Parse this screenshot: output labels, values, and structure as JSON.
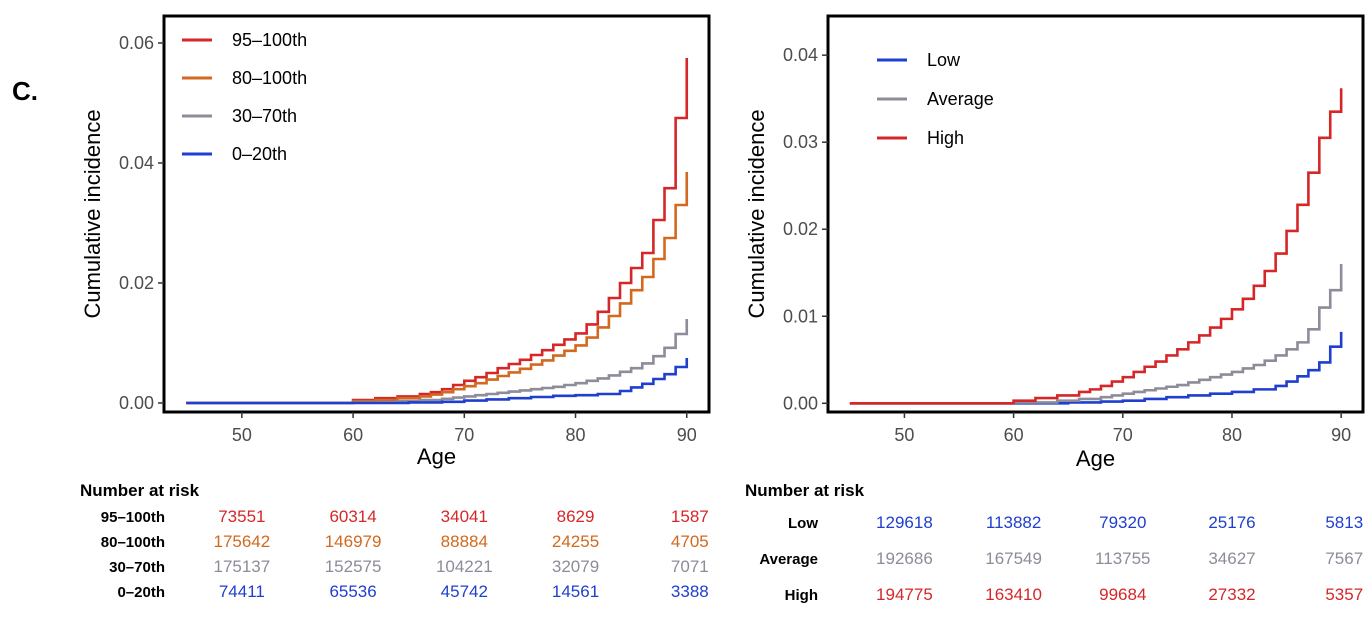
{
  "panel_label": "C.",
  "colors": {
    "red": "#d62728",
    "orange": "#d2691e",
    "gray": "#8c8c9a",
    "blue": "#1f3fcf"
  },
  "chart_data": [
    {
      "type": "line",
      "step": true,
      "xlabel": "Age",
      "ylabel": "Cumulative incidence",
      "xlim": [
        43,
        92
      ],
      "ylim": [
        -0.0015,
        0.0645
      ],
      "xticks": [
        50,
        60,
        70,
        80,
        90
      ],
      "yticks": [
        0.0,
        0.02,
        0.04,
        0.06
      ],
      "ytick_labels": [
        "0.00",
        "0.02",
        "0.04",
        "0.06"
      ],
      "legend_position": "top-left",
      "series": [
        {
          "name": "95–100th",
          "color": "#d62728",
          "x": [
            45,
            55,
            60,
            62,
            64,
            66,
            67,
            68,
            69,
            70,
            71,
            72,
            73,
            74,
            75,
            76,
            77,
            78,
            79,
            80,
            81,
            82,
            83,
            84,
            85,
            86,
            87,
            88,
            89,
            90
          ],
          "y": [
            0,
            0,
            0.0005,
            0.0008,
            0.0011,
            0.0015,
            0.0018,
            0.0023,
            0.003,
            0.0037,
            0.0043,
            0.005,
            0.0058,
            0.0065,
            0.0072,
            0.008,
            0.0088,
            0.0097,
            0.0106,
            0.0116,
            0.0131,
            0.0152,
            0.0175,
            0.02,
            0.0225,
            0.025,
            0.0305,
            0.0358,
            0.0475,
            0.0575
          ]
        },
        {
          "name": "80–100th",
          "color": "#d2691e",
          "x": [
            45,
            55,
            60,
            62,
            64,
            66,
            67,
            68,
            69,
            70,
            71,
            72,
            73,
            74,
            75,
            76,
            77,
            78,
            79,
            80,
            81,
            82,
            83,
            84,
            85,
            86,
            87,
            88,
            89,
            90
          ],
          "y": [
            0,
            0,
            0.0003,
            0.0005,
            0.0008,
            0.0011,
            0.0014,
            0.0018,
            0.0023,
            0.0028,
            0.0033,
            0.0039,
            0.0045,
            0.0051,
            0.0057,
            0.0064,
            0.0071,
            0.0079,
            0.0087,
            0.0096,
            0.0109,
            0.0126,
            0.0145,
            0.0166,
            0.0188,
            0.021,
            0.024,
            0.0275,
            0.033,
            0.0385
          ]
        },
        {
          "name": "30–70th",
          "color": "#8c8c9a",
          "x": [
            45,
            55,
            60,
            64,
            66,
            68,
            69,
            70,
            71,
            72,
            73,
            74,
            75,
            76,
            77,
            78,
            79,
            80,
            81,
            82,
            83,
            84,
            85,
            86,
            87,
            88,
            89,
            90
          ],
          "y": [
            0,
            0,
            0.0001,
            0.0003,
            0.0005,
            0.0007,
            0.0009,
            0.0011,
            0.0013,
            0.0015,
            0.0017,
            0.0019,
            0.0021,
            0.0023,
            0.0025,
            0.0027,
            0.003,
            0.0033,
            0.0037,
            0.0041,
            0.0046,
            0.0052,
            0.0058,
            0.0066,
            0.0078,
            0.0092,
            0.0115,
            0.014
          ]
        },
        {
          "name": "0–20th",
          "color": "#1f3fcf",
          "x": [
            45,
            60,
            65,
            68,
            70,
            72,
            74,
            76,
            78,
            80,
            82,
            84,
            85,
            86,
            87,
            88,
            89,
            90
          ],
          "y": [
            0,
            0,
            0.0001,
            0.0002,
            0.0004,
            0.0006,
            0.0008,
            0.001,
            0.0012,
            0.0013,
            0.0015,
            0.002,
            0.0026,
            0.0032,
            0.004,
            0.0048,
            0.006,
            0.0075
          ]
        }
      ]
    },
    {
      "type": "line",
      "step": true,
      "xlabel": "Age",
      "ylabel": "Cumulative incidence",
      "xlim": [
        43,
        92
      ],
      "ylim": [
        -0.001,
        0.0445
      ],
      "xticks": [
        50,
        60,
        70,
        80,
        90
      ],
      "yticks": [
        0.0,
        0.01,
        0.02,
        0.03,
        0.04
      ],
      "ytick_labels": [
        "0.00",
        "0.01",
        "0.02",
        "0.03",
        "0.04"
      ],
      "legend_position": "top-left",
      "series": [
        {
          "name": "Low",
          "color": "#1f3fcf",
          "x": [
            45,
            60,
            65,
            68,
            70,
            72,
            74,
            76,
            78,
            80,
            82,
            84,
            85,
            86,
            87,
            88,
            89,
            90
          ],
          "y": [
            0,
            0,
            0.0001,
            0.0002,
            0.0003,
            0.0005,
            0.0007,
            0.0009,
            0.0011,
            0.0013,
            0.0016,
            0.002,
            0.0025,
            0.0031,
            0.0038,
            0.0047,
            0.0065,
            0.0082
          ]
        },
        {
          "name": "Average",
          "color": "#8c8c9a",
          "x": [
            45,
            60,
            64,
            66,
            68,
            69,
            70,
            71,
            72,
            73,
            74,
            75,
            76,
            77,
            78,
            79,
            80,
            81,
            82,
            83,
            84,
            85,
            86,
            87,
            88,
            89,
            90
          ],
          "y": [
            0,
            0.0001,
            0.0003,
            0.0005,
            0.0007,
            0.0009,
            0.0011,
            0.0013,
            0.0015,
            0.0017,
            0.0019,
            0.0021,
            0.0024,
            0.0027,
            0.003,
            0.0033,
            0.0036,
            0.004,
            0.0044,
            0.0049,
            0.0055,
            0.0062,
            0.007,
            0.0085,
            0.011,
            0.013,
            0.016
          ]
        },
        {
          "name": "High",
          "color": "#d62728",
          "x": [
            45,
            60,
            62,
            64,
            66,
            67,
            68,
            69,
            70,
            71,
            72,
            73,
            74,
            75,
            76,
            77,
            78,
            79,
            80,
            81,
            82,
            83,
            84,
            85,
            86,
            87,
            88,
            89,
            90
          ],
          "y": [
            0,
            0.0003,
            0.0006,
            0.0009,
            0.0013,
            0.0016,
            0.002,
            0.0025,
            0.003,
            0.0036,
            0.0042,
            0.0048,
            0.0055,
            0.0062,
            0.007,
            0.0078,
            0.0087,
            0.0097,
            0.0108,
            0.012,
            0.0135,
            0.0152,
            0.0172,
            0.0198,
            0.0228,
            0.0265,
            0.0305,
            0.0335,
            0.0362
          ]
        }
      ]
    }
  ],
  "risk_tables": [
    {
      "title": "Number at risk",
      "rows": [
        {
          "label": "95–100th",
          "color": "#d62728",
          "values": [
            "73551",
            "60314",
            "34041",
            "8629",
            "1587"
          ]
        },
        {
          "label": "80–100th",
          "color": "#d2691e",
          "values": [
            "175642",
            "146979",
            "88884",
            "24255",
            "4705"
          ]
        },
        {
          "label": "30–70th",
          "color": "#8c8c9a",
          "values": [
            "175137",
            "152575",
            "104221",
            "32079",
            "7071"
          ]
        },
        {
          "label": "0–20th",
          "color": "#1f3fcf",
          "values": [
            "74411",
            "65536",
            "45742",
            "14561",
            "3388"
          ]
        }
      ]
    },
    {
      "title": "Number at risk",
      "rows": [
        {
          "label": "Low",
          "color": "#1f3fcf",
          "values": [
            "129618",
            "113882",
            "79320",
            "25176",
            "5813"
          ]
        },
        {
          "label": "Average",
          "color": "#8c8c9a",
          "values": [
            "192686",
            "167549",
            "113755",
            "34627",
            "7567"
          ]
        },
        {
          "label": "High",
          "color": "#d62728",
          "values": [
            "194775",
            "163410",
            "99684",
            "27332",
            "5357"
          ]
        }
      ]
    }
  ]
}
